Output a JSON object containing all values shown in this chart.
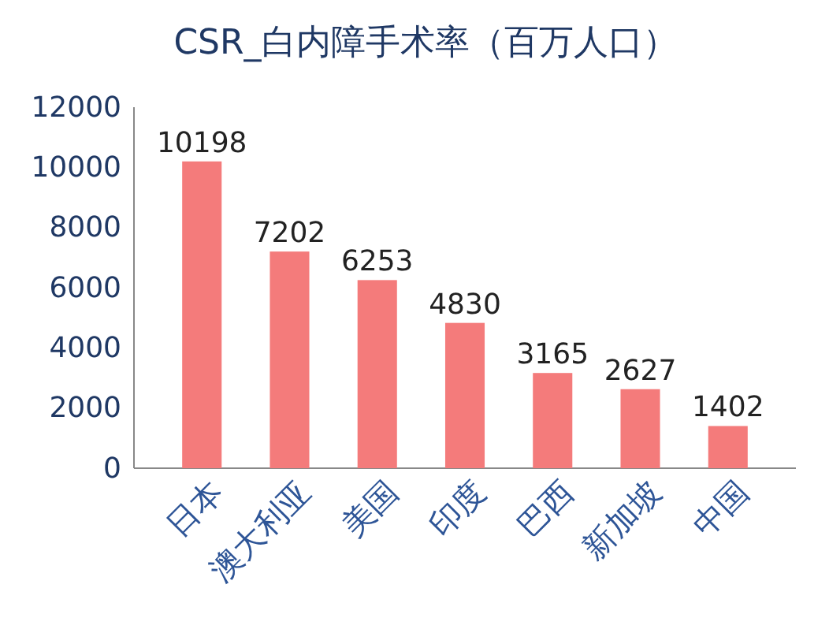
{
  "chart_data": {
    "type": "bar",
    "title": "CSR_白内障手术率（百万人口）",
    "categories": [
      "日本",
      "澳大利亚",
      "美国",
      "印度",
      "巴西",
      "新加坡",
      "中国"
    ],
    "values": [
      10198,
      7202,
      6253,
      4830,
      3165,
      2627,
      1402
    ],
    "color": "#f47b7b",
    "ylim": [
      0,
      12000
    ],
    "yticks": [
      0,
      2000,
      4000,
      6000,
      8000,
      10000,
      12000
    ],
    "grid": false,
    "data_labels": true
  }
}
